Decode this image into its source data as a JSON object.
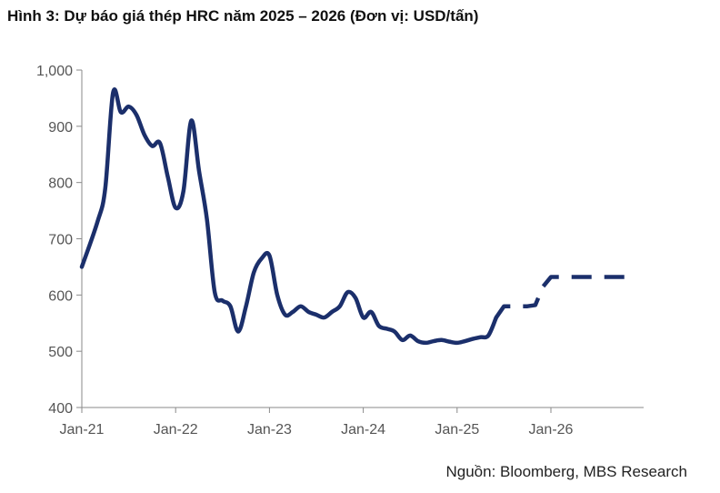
{
  "chart_data": {
    "type": "line",
    "title": "Hình 3: Dự báo giá thép HRC năm 2025 – 2026 (Đơn vị: USD/tấn)",
    "xlabel": "",
    "ylabel": "",
    "source": "Nguồn: Bloomberg, MBS Research",
    "ylim": [
      400,
      1000
    ],
    "xlim": [
      "2021-01",
      "2026-11"
    ],
    "y_ticks": [
      {
        "value": 400,
        "label": "400"
      },
      {
        "value": 500,
        "label": "500"
      },
      {
        "value": 600,
        "label": "600"
      },
      {
        "value": 700,
        "label": "700"
      },
      {
        "value": 800,
        "label": "800"
      },
      {
        "value": 900,
        "label": "900"
      },
      {
        "value": 1000,
        "label": "1,000"
      }
    ],
    "x_ticks": [
      {
        "value": "2021-01",
        "label": "Jan-21"
      },
      {
        "value": "2022-01",
        "label": "Jan-22"
      },
      {
        "value": "2023-01",
        "label": "Jan-23"
      },
      {
        "value": "2024-01",
        "label": "Jan-24"
      },
      {
        "value": "2025-01",
        "label": "Jan-25"
      },
      {
        "value": "2026-01",
        "label": "Jan-26"
      }
    ],
    "grid": false,
    "color": "#1b2f6b",
    "series": [
      {
        "style": "solid",
        "points": [
          [
            "2021-01",
            650
          ],
          [
            "2021-03",
            730
          ],
          [
            "2021-04",
            790
          ],
          [
            "2021-05",
            960
          ],
          [
            "2021-06",
            925
          ],
          [
            "2021-07",
            935
          ],
          [
            "2021-08",
            920
          ],
          [
            "2021-09",
            885
          ],
          [
            "2021-10",
            865
          ],
          [
            "2021-11",
            870
          ],
          [
            "2021-12",
            810
          ],
          [
            "2022-01",
            755
          ],
          [
            "2022-02",
            785
          ],
          [
            "2022-03",
            910
          ],
          [
            "2022-04",
            820
          ],
          [
            "2022-05",
            735
          ],
          [
            "2022-06",
            605
          ],
          [
            "2022-07",
            590
          ],
          [
            "2022-08",
            580
          ],
          [
            "2022-09",
            535
          ],
          [
            "2022-10",
            580
          ],
          [
            "2022-11",
            640
          ],
          [
            "2022-12",
            665
          ],
          [
            "2023-01",
            670
          ],
          [
            "2023-02",
            600
          ],
          [
            "2023-03",
            565
          ],
          [
            "2023-04",
            570
          ],
          [
            "2023-05",
            580
          ],
          [
            "2023-06",
            570
          ],
          [
            "2023-07",
            565
          ],
          [
            "2023-08",
            560
          ],
          [
            "2023-09",
            570
          ],
          [
            "2023-10",
            580
          ],
          [
            "2023-11",
            605
          ],
          [
            "2023-12",
            595
          ],
          [
            "2024-01",
            560
          ],
          [
            "2024-02",
            570
          ],
          [
            "2024-03",
            545
          ],
          [
            "2024-04",
            540
          ],
          [
            "2024-05",
            535
          ],
          [
            "2024-06",
            520
          ],
          [
            "2024-07",
            528
          ],
          [
            "2024-08",
            518
          ],
          [
            "2024-09",
            515
          ],
          [
            "2024-10",
            518
          ],
          [
            "2024-11",
            520
          ],
          [
            "2024-12",
            517
          ],
          [
            "2025-01",
            515
          ],
          [
            "2025-02",
            518
          ],
          [
            "2025-03",
            522
          ],
          [
            "2025-04",
            525
          ],
          [
            "2025-05",
            528
          ],
          [
            "2025-06",
            560
          ]
        ]
      },
      {
        "style": "dashed",
        "points": [
          [
            "2025-06",
            560
          ],
          [
            "2025-07",
            580
          ],
          [
            "2025-08",
            580
          ],
          [
            "2025-09",
            580
          ],
          [
            "2025-10",
            580
          ],
          [
            "2025-11",
            582
          ],
          [
            "2025-12",
            615
          ],
          [
            "2026-01",
            632
          ],
          [
            "2026-02",
            632
          ],
          [
            "2026-03",
            632
          ],
          [
            "2026-04",
            632
          ],
          [
            "2026-05",
            632
          ],
          [
            "2026-06",
            632
          ],
          [
            "2026-07",
            632
          ],
          [
            "2026-08",
            632
          ],
          [
            "2026-09",
            632
          ],
          [
            "2026-10",
            632
          ],
          [
            "2026-11",
            632
          ]
        ]
      }
    ]
  }
}
